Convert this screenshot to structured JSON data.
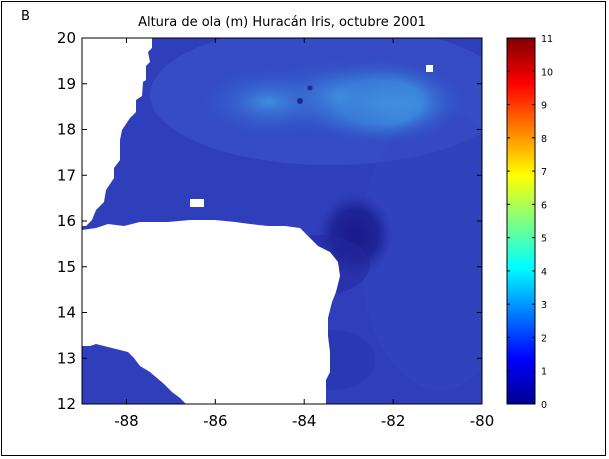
{
  "panel_label": "B",
  "chart_data": {
    "type": "heatmap",
    "title": "Altura de ola (m) Huracán Iris, octubre 2001",
    "xlabel": "",
    "ylabel": "",
    "xlim": [
      -89,
      -80
    ],
    "ylim": [
      12,
      20
    ],
    "x_ticks": [
      -88,
      -86,
      -84,
      -82,
      -80
    ],
    "y_ticks": [
      12,
      13,
      14,
      15,
      16,
      17,
      18,
      19,
      20
    ],
    "x_tick_labels": [
      "-88",
      "-86",
      "-84",
      "-82",
      "-80"
    ],
    "y_tick_labels": [
      "12",
      "13",
      "14",
      "15",
      "16",
      "17",
      "18",
      "19",
      "20"
    ],
    "colorbar": {
      "min": 0,
      "max": 11,
      "ticks": [
        0,
        1,
        2,
        3,
        4,
        5,
        6,
        7,
        8,
        9,
        10,
        11
      ],
      "tick_labels": [
        "0",
        "1",
        "2",
        "3",
        "4",
        "5",
        "6",
        "7",
        "8",
        "9",
        "10",
        "11"
      ],
      "colormap": "jet"
    },
    "field": {
      "background_wave_height_m": 1.2,
      "peaks": [
        {
          "lon": -82.3,
          "lat": 18.6,
          "height_m": 2.7
        },
        {
          "lon": -83.3,
          "lat": 18.7,
          "height_m": 2.4
        },
        {
          "lon": -84.8,
          "lat": 18.6,
          "height_m": 2.0
        }
      ],
      "sheltered_low": {
        "lon": -83.3,
        "lat": 15.8,
        "height_m": 0.4
      }
    },
    "land_color": "#ffffff"
  }
}
